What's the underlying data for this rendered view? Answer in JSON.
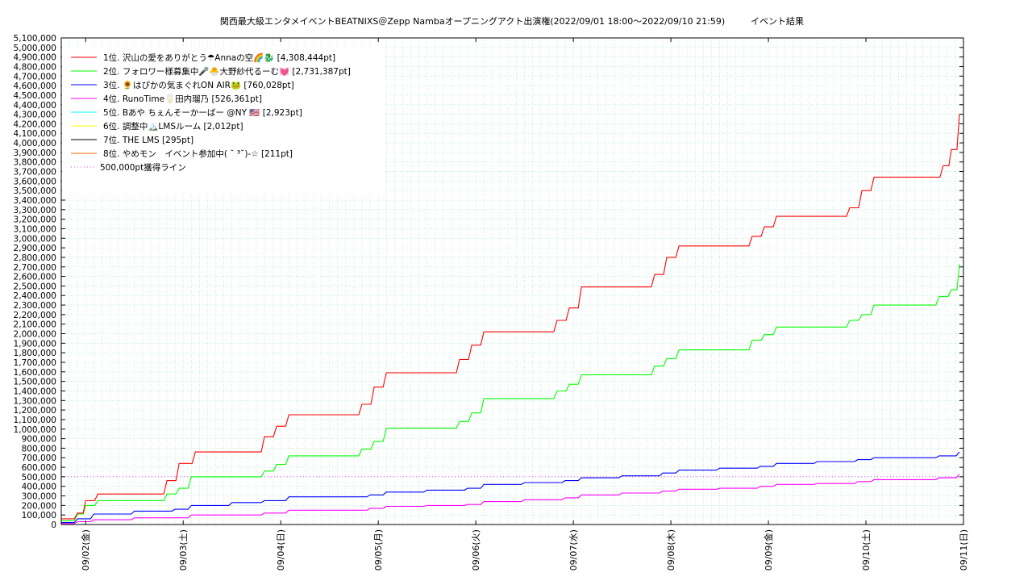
{
  "chart_data": {
    "type": "line",
    "title": "関西最大級エンタメイベントBEATNIXS＠Zepp Nambaオープニングアクト出演権(2022/09/01 18:00～2022/09/10 21:59)",
    "subtitle": "イベント結果",
    "xlabel": "",
    "ylabel": "",
    "ylim": [
      0,
      5100000
    ],
    "y_tick_step": 100000,
    "y_tick_labels": [
      "0",
      "100,000",
      "200,000",
      "300,000",
      "400,000",
      "500,000",
      "600,000",
      "700,000",
      "800,000",
      "900,000",
      "1,000,000",
      "1,100,000",
      "1,200,000",
      "1,300,000",
      "1,400,000",
      "1,500,000",
      "1,600,000",
      "1,700,000",
      "1,800,000",
      "1,900,000",
      "2,000,000",
      "2,100,000",
      "2,200,000",
      "2,300,000",
      "2,400,000",
      "2,500,000",
      "2,600,000",
      "2,700,000",
      "2,800,000",
      "2,900,000",
      "3,000,000",
      "3,100,000",
      "3,200,000",
      "3,300,000",
      "3,400,000",
      "3,500,000",
      "3,600,000",
      "3,700,000",
      "3,800,000",
      "3,900,000",
      "4,000,000",
      "4,100,000",
      "4,200,000",
      "4,300,000",
      "4,400,000",
      "4,500,000",
      "4,600,000",
      "4,700,000",
      "4,800,000",
      "4,900,000",
      "5,000,000",
      "5,100,000"
    ],
    "x_axis": {
      "start": "2022-09-01 18:00",
      "end": "2022-09-11 00:00",
      "tick_dates": [
        "2022-09-02",
        "2022-09-03",
        "2022-09-04",
        "2022-09-05",
        "2022-09-06",
        "2022-09-07",
        "2022-09-08",
        "2022-09-09",
        "2022-09-10",
        "2022-09-11"
      ],
      "tick_labels": [
        "09/02(金)",
        "09/03(土)",
        "09/04(日)",
        "09/05(月)",
        "09/06(火)",
        "09/07(水)",
        "09/08(木)",
        "09/09(金)",
        "09/10(土)",
        "09/11(日)"
      ]
    },
    "grid": true,
    "legend_position": "top-left",
    "series": [
      {
        "name": "1位. 沢山の愛をありがとう☂Annaの空🌈🐉 [4,308,444pt]",
        "color": "#ff0000",
        "style": "solid",
        "points": [
          [
            "2022-09-01 18:00",
            60000
          ],
          [
            "2022-09-01 22:00",
            120000
          ],
          [
            "2022-09-02 00:00",
            250000
          ],
          [
            "2022-09-02 03:00",
            320000
          ],
          [
            "2022-09-02 20:00",
            460000
          ],
          [
            "2022-09-02 23:00",
            640000
          ],
          [
            "2022-09-03 03:00",
            760000
          ],
          [
            "2022-09-03 20:00",
            920000
          ],
          [
            "2022-09-03 23:00",
            1030000
          ],
          [
            "2022-09-04 02:00",
            1150000
          ],
          [
            "2022-09-04 20:00",
            1260000
          ],
          [
            "2022-09-04 23:00",
            1440000
          ],
          [
            "2022-09-05 02:00",
            1590000
          ],
          [
            "2022-09-05 20:00",
            1730000
          ],
          [
            "2022-09-05 23:00",
            1880000
          ],
          [
            "2022-09-06 02:00",
            2020000
          ],
          [
            "2022-09-06 20:00",
            2140000
          ],
          [
            "2022-09-06 23:00",
            2270000
          ],
          [
            "2022-09-07 02:00",
            2490000
          ],
          [
            "2022-09-07 20:00",
            2620000
          ],
          [
            "2022-09-07 23:00",
            2800000
          ],
          [
            "2022-09-08 02:00",
            2920000
          ],
          [
            "2022-09-08 20:00",
            3020000
          ],
          [
            "2022-09-08 23:00",
            3120000
          ],
          [
            "2022-09-09 02:00",
            3230000
          ],
          [
            "2022-09-09 20:00",
            3320000
          ],
          [
            "2022-09-09 23:00",
            3500000
          ],
          [
            "2022-09-10 02:00",
            3640000
          ],
          [
            "2022-09-10 19:00",
            3760000
          ],
          [
            "2022-09-10 21:00",
            3930000
          ],
          [
            "2022-09-10 23:00",
            4300000
          ]
        ]
      },
      {
        "name": "2位. フォロワー様募集中🎤🐣大野紗代るーむ💓 [2,731,387pt]",
        "color": "#00ff00",
        "style": "solid",
        "points": [
          [
            "2022-09-01 18:00",
            40000
          ],
          [
            "2022-09-01 22:00",
            110000
          ],
          [
            "2022-09-02 00:00",
            200000
          ],
          [
            "2022-09-02 03:00",
            250000
          ],
          [
            "2022-09-02 20:00",
            320000
          ],
          [
            "2022-09-02 23:00",
            380000
          ],
          [
            "2022-09-03 02:00",
            500000
          ],
          [
            "2022-09-03 20:00",
            560000
          ],
          [
            "2022-09-03 23:00",
            630000
          ],
          [
            "2022-09-04 02:00",
            720000
          ],
          [
            "2022-09-04 20:00",
            790000
          ],
          [
            "2022-09-04 23:00",
            870000
          ],
          [
            "2022-09-05 02:00",
            1010000
          ],
          [
            "2022-09-05 20:00",
            1080000
          ],
          [
            "2022-09-05 23:00",
            1170000
          ],
          [
            "2022-09-06 02:00",
            1320000
          ],
          [
            "2022-09-06 20:00",
            1400000
          ],
          [
            "2022-09-06 23:00",
            1470000
          ],
          [
            "2022-09-07 02:00",
            1570000
          ],
          [
            "2022-09-07 20:00",
            1660000
          ],
          [
            "2022-09-07 23:00",
            1740000
          ],
          [
            "2022-09-08 02:00",
            1830000
          ],
          [
            "2022-09-08 20:00",
            1930000
          ],
          [
            "2022-09-08 23:00",
            1990000
          ],
          [
            "2022-09-09 02:00",
            2070000
          ],
          [
            "2022-09-09 20:00",
            2140000
          ],
          [
            "2022-09-09 23:00",
            2200000
          ],
          [
            "2022-09-10 02:00",
            2300000
          ],
          [
            "2022-09-10 18:00",
            2390000
          ],
          [
            "2022-09-10 21:00",
            2460000
          ],
          [
            "2022-09-10 23:00",
            2730000
          ]
        ]
      },
      {
        "name": "3位. 🌻はぴかの気まぐれON AIR🐸 [760,028pt]",
        "color": "#0000ff",
        "style": "solid",
        "points": [
          [
            "2022-09-01 18:00",
            20000
          ],
          [
            "2022-09-01 22:00",
            60000
          ],
          [
            "2022-09-02 02:00",
            110000
          ],
          [
            "2022-09-02 12:00",
            140000
          ],
          [
            "2022-09-02 22:00",
            160000
          ],
          [
            "2022-09-03 02:00",
            200000
          ],
          [
            "2022-09-03 12:00",
            230000
          ],
          [
            "2022-09-03 20:00",
            250000
          ],
          [
            "2022-09-04 02:00",
            290000
          ],
          [
            "2022-09-04 22:00",
            310000
          ],
          [
            "2022-09-05 02:00",
            340000
          ],
          [
            "2022-09-05 12:00",
            360000
          ],
          [
            "2022-09-05 22:00",
            380000
          ],
          [
            "2022-09-06 02:00",
            420000
          ],
          [
            "2022-09-06 12:00",
            440000
          ],
          [
            "2022-09-06 22:00",
            460000
          ],
          [
            "2022-09-07 02:00",
            490000
          ],
          [
            "2022-09-07 12:00",
            510000
          ],
          [
            "2022-09-07 22:00",
            540000
          ],
          [
            "2022-09-08 02:00",
            570000
          ],
          [
            "2022-09-08 12:00",
            590000
          ],
          [
            "2022-09-08 22:00",
            610000
          ],
          [
            "2022-09-09 02:00",
            640000
          ],
          [
            "2022-09-09 12:00",
            660000
          ],
          [
            "2022-09-09 22:00",
            680000
          ],
          [
            "2022-09-10 02:00",
            700000
          ],
          [
            "2022-09-10 18:00",
            720000
          ],
          [
            "2022-09-10 23:00",
            760000
          ]
        ]
      },
      {
        "name": "4位. RunoTime🥛田内瑠乃 [526,361pt]",
        "color": "#ff00ff",
        "style": "solid",
        "points": [
          [
            "2022-09-01 18:00",
            10000
          ],
          [
            "2022-09-01 22:00",
            30000
          ],
          [
            "2022-09-02 02:00",
            50000
          ],
          [
            "2022-09-02 12:00",
            70000
          ],
          [
            "2022-09-03 02:00",
            100000
          ],
          [
            "2022-09-03 20:00",
            120000
          ],
          [
            "2022-09-04 02:00",
            150000
          ],
          [
            "2022-09-04 22:00",
            170000
          ],
          [
            "2022-09-05 02:00",
            190000
          ],
          [
            "2022-09-05 12:00",
            200000
          ],
          [
            "2022-09-05 22:00",
            210000
          ],
          [
            "2022-09-06 02:00",
            240000
          ],
          [
            "2022-09-06 12:00",
            260000
          ],
          [
            "2022-09-06 22:00",
            280000
          ],
          [
            "2022-09-07 02:00",
            310000
          ],
          [
            "2022-09-07 12:00",
            330000
          ],
          [
            "2022-09-07 22:00",
            350000
          ],
          [
            "2022-09-08 02:00",
            370000
          ],
          [
            "2022-09-08 12:00",
            380000
          ],
          [
            "2022-09-08 22:00",
            400000
          ],
          [
            "2022-09-09 02:00",
            420000
          ],
          [
            "2022-09-09 12:00",
            430000
          ],
          [
            "2022-09-09 22:00",
            450000
          ],
          [
            "2022-09-10 02:00",
            470000
          ],
          [
            "2022-09-10 18:00",
            490000
          ],
          [
            "2022-09-10 23:00",
            526000
          ]
        ]
      },
      {
        "name": "5位. Bあや ちぇんそーかーばー @NY 🇺🇸 [2,923pt]",
        "color": "#00ffff",
        "style": "solid",
        "points": [
          [
            "2022-09-01 18:00",
            0
          ],
          [
            "2022-09-11 00:00",
            2923
          ]
        ]
      },
      {
        "name": "6位. 調整中🏔️LMSルーム [2,012pt]",
        "color": "#ffff00",
        "style": "solid",
        "points": [
          [
            "2022-09-01 18:00",
            0
          ],
          [
            "2022-09-11 00:00",
            2012
          ]
        ]
      },
      {
        "name": "7位. THE LMS [295pt]",
        "color": "#000000",
        "style": "solid",
        "points": [
          [
            "2022-09-01 18:00",
            0
          ],
          [
            "2022-09-11 00:00",
            295
          ]
        ]
      },
      {
        "name": "8位. やめモン　イベント参加中( ˘ ³˘)-☆ [211pt]",
        "color": "#ff6600",
        "style": "solid",
        "points": [
          [
            "2022-09-01 18:00",
            0
          ],
          [
            "2022-09-11 00:00",
            211
          ]
        ]
      },
      {
        "name": "500,000pt獲得ライン",
        "color": "#ff00ff",
        "style": "dotted",
        "points": [
          [
            "2022-09-01 18:00",
            500000
          ],
          [
            "2022-09-11 00:00",
            500000
          ]
        ]
      }
    ]
  }
}
